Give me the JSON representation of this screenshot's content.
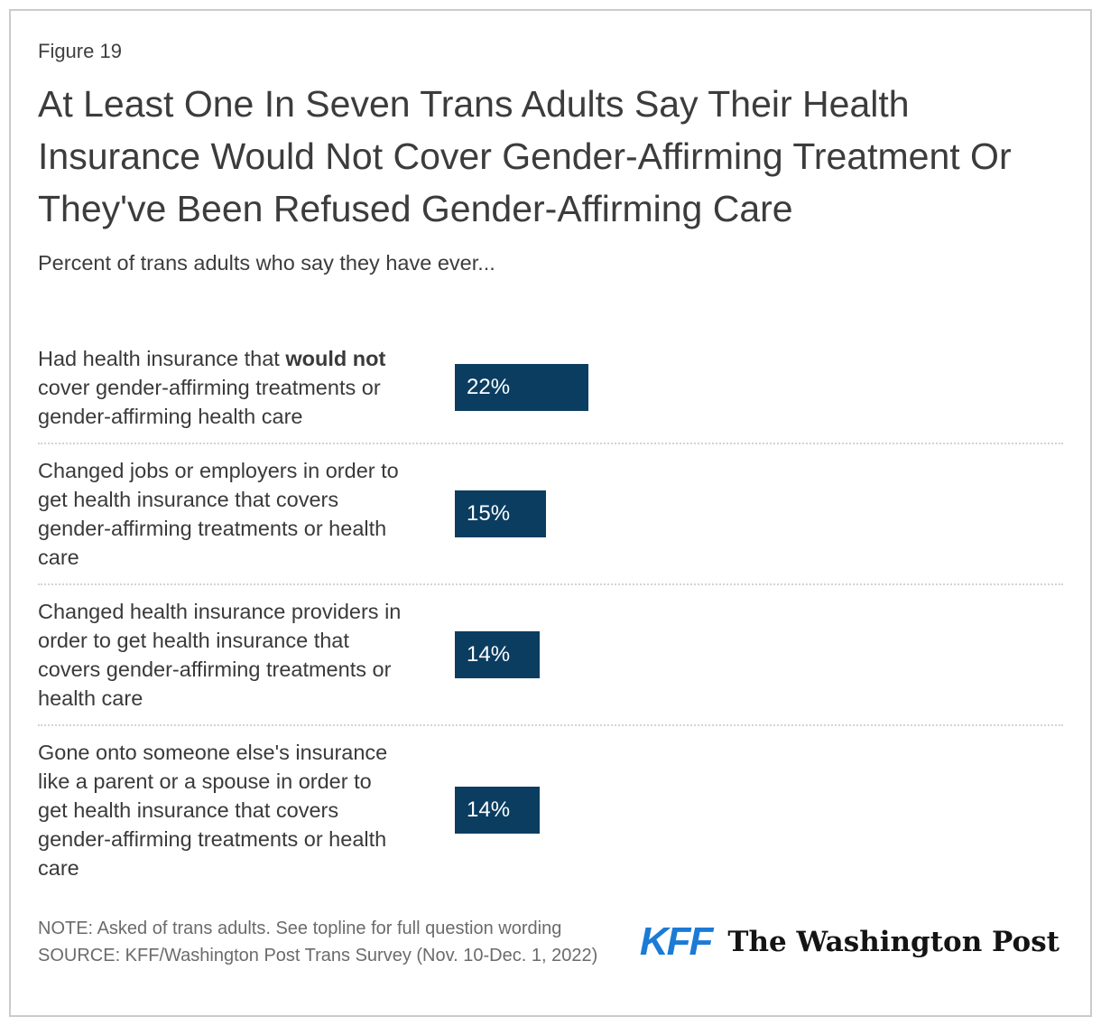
{
  "figure_label": "Figure 19",
  "title": "At Least One In Seven Trans Adults Say Their Health Insurance Would Not Cover Gender-Affirming Treatment Or They've Been Refused Gender-Affirming Care",
  "subtitle": "Percent of trans adults who say they have ever...",
  "chart_data": {
    "type": "bar",
    "orientation": "horizontal",
    "title": "At Least One In Seven Trans Adults Say Their Health Insurance Would Not Cover Gender-Affirming Treatment Or They've Been Refused Gender-Affirming Care",
    "subtitle": "Percent of trans adults who say they have ever...",
    "categories": [
      "Had health insurance that would not cover gender-affirming treatments or gender-affirming health care",
      "Changed jobs or employers in order to get health insurance that covers gender-affirming treatments or health care",
      "Changed health insurance providers in order to get health insurance that covers gender-affirming treatments or health care",
      "Gone onto someone else's insurance like a parent or a spouse in order to get health insurance that covers gender-affirming treatments or health care"
    ],
    "values": [
      22,
      15,
      14,
      14
    ],
    "value_labels": [
      "22%",
      "15%",
      "14%",
      "14%"
    ],
    "xlim": [
      0,
      100
    ],
    "grid": false,
    "legend": false,
    "bar_color": "#0b3d61",
    "value_label_position": "inside-left"
  },
  "rows": [
    {
      "label_pre": "Had health insurance that ",
      "label_bold": "would not",
      "label_post": "\ncover gender-affirming treatments or\ngender-affirming health care",
      "value_label": "22%"
    },
    {
      "label_pre": "Changed jobs or employers in order to\nget health insurance that covers\ngender-affirming treatments or health\ncare",
      "label_bold": "",
      "label_post": "",
      "value_label": "15%"
    },
    {
      "label_pre": "Changed health insurance providers in\norder to get health insurance that\ncovers gender-affirming treatments or\nhealth care",
      "label_bold": "",
      "label_post": "",
      "value_label": "14%"
    },
    {
      "label_pre": "Gone onto someone else's insurance\nlike a parent or a spouse in order to\nget health insurance that covers\ngender-affirming treatments or health\ncare",
      "label_bold": "",
      "label_post": "",
      "value_label": "14%"
    }
  ],
  "footer": {
    "note": "NOTE: Asked of trans adults. See topline for full question wording",
    "source": "SOURCE: KFF/Washington Post Trans Survey (Nov. 10-Dec. 1, 2022)",
    "kff_logo_text": "KFF",
    "wapo_logo_text": "The Washington Post"
  },
  "colors": {
    "bar": "#0b3d61",
    "kff_blue": "#1b7bd5",
    "text_dark": "#3c3c3c",
    "text_gray": "#6b6b6b",
    "divider": "#d3d3d3",
    "frame_border": "#cbcbcb"
  }
}
